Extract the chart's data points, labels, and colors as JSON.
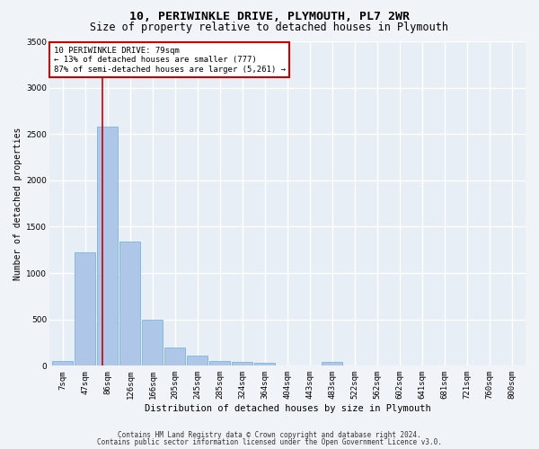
{
  "title1": "10, PERIWINKLE DRIVE, PLYMOUTH, PL7 2WR",
  "title2": "Size of property relative to detached houses in Plymouth",
  "xlabel": "Distribution of detached houses by size in Plymouth",
  "ylabel": "Number of detached properties",
  "bin_labels": [
    "7sqm",
    "47sqm",
    "86sqm",
    "126sqm",
    "166sqm",
    "205sqm",
    "245sqm",
    "285sqm",
    "324sqm",
    "364sqm",
    "404sqm",
    "443sqm",
    "483sqm",
    "522sqm",
    "562sqm",
    "602sqm",
    "641sqm",
    "681sqm",
    "721sqm",
    "760sqm",
    "800sqm"
  ],
  "bar_values": [
    50,
    1220,
    2580,
    1340,
    500,
    195,
    105,
    50,
    40,
    35,
    0,
    0,
    40,
    0,
    0,
    0,
    0,
    0,
    0,
    0,
    0
  ],
  "bar_color": "#aec6e8",
  "bar_edge_color": "#6baed6",
  "background_color": "#e8eef5",
  "grid_color": "#ffffff",
  "vline_color": "#cc0000",
  "vline_pos": 1.75,
  "annotation_text": "10 PERIWINKLE DRIVE: 79sqm\n← 13% of detached houses are smaller (777)\n87% of semi-detached houses are larger (5,261) →",
  "annotation_box_color": "#ffffff",
  "annotation_edge_color": "#cc0000",
  "ylim": [
    0,
    3500
  ],
  "yticks": [
    0,
    500,
    1000,
    1500,
    2000,
    2500,
    3000,
    3500
  ],
  "footer1": "Contains HM Land Registry data © Crown copyright and database right 2024.",
  "footer2": "Contains public sector information licensed under the Open Government Licence v3.0.",
  "title1_fontsize": 9.5,
  "title2_fontsize": 8.5,
  "xlabel_fontsize": 7.5,
  "ylabel_fontsize": 7,
  "tick_fontsize": 6.5,
  "annotation_fontsize": 6.5,
  "footer_fontsize": 5.5
}
